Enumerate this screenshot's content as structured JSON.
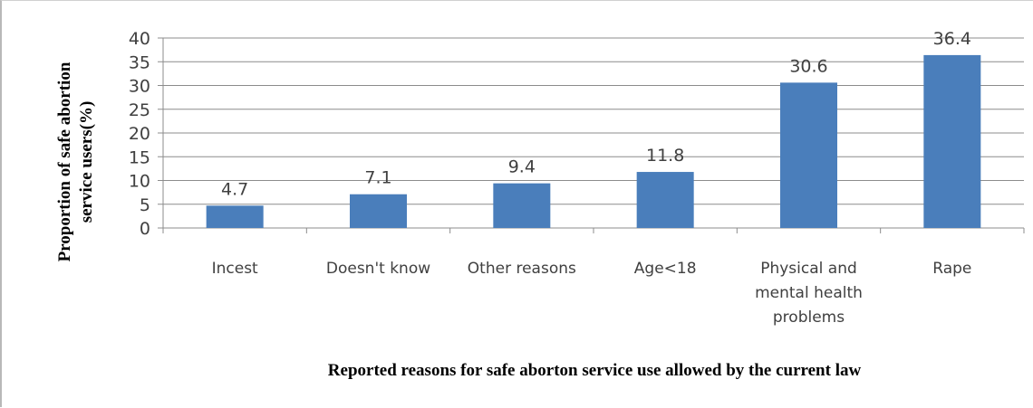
{
  "chart_data": {
    "type": "bar",
    "categories": [
      [
        "Incest"
      ],
      [
        "Doesn't know"
      ],
      [
        "Other reasons"
      ],
      [
        "Age<18"
      ],
      [
        "Physical and",
        "mental health",
        "problems"
      ],
      [
        "Rape"
      ]
    ],
    "values": [
      4.7,
      7.1,
      9.4,
      11.8,
      30.6,
      36.4
    ],
    "data_labels": [
      "4.7",
      "7.1",
      "9.4",
      "11.8",
      "30.6",
      "36.4"
    ],
    "yticks": [
      0,
      5,
      10,
      15,
      20,
      25,
      30,
      35,
      40
    ],
    "ylim": [
      0,
      40
    ],
    "ylabel": [
      "Proportion  of safe abortion",
      "service users(%)"
    ],
    "xlabel": "Reported reasons for safe aborton service use allowed by  the current  law",
    "grid": true,
    "legend": "none",
    "bar_color": "#4a7ebb",
    "grid_color": "#8c8c8c"
  }
}
